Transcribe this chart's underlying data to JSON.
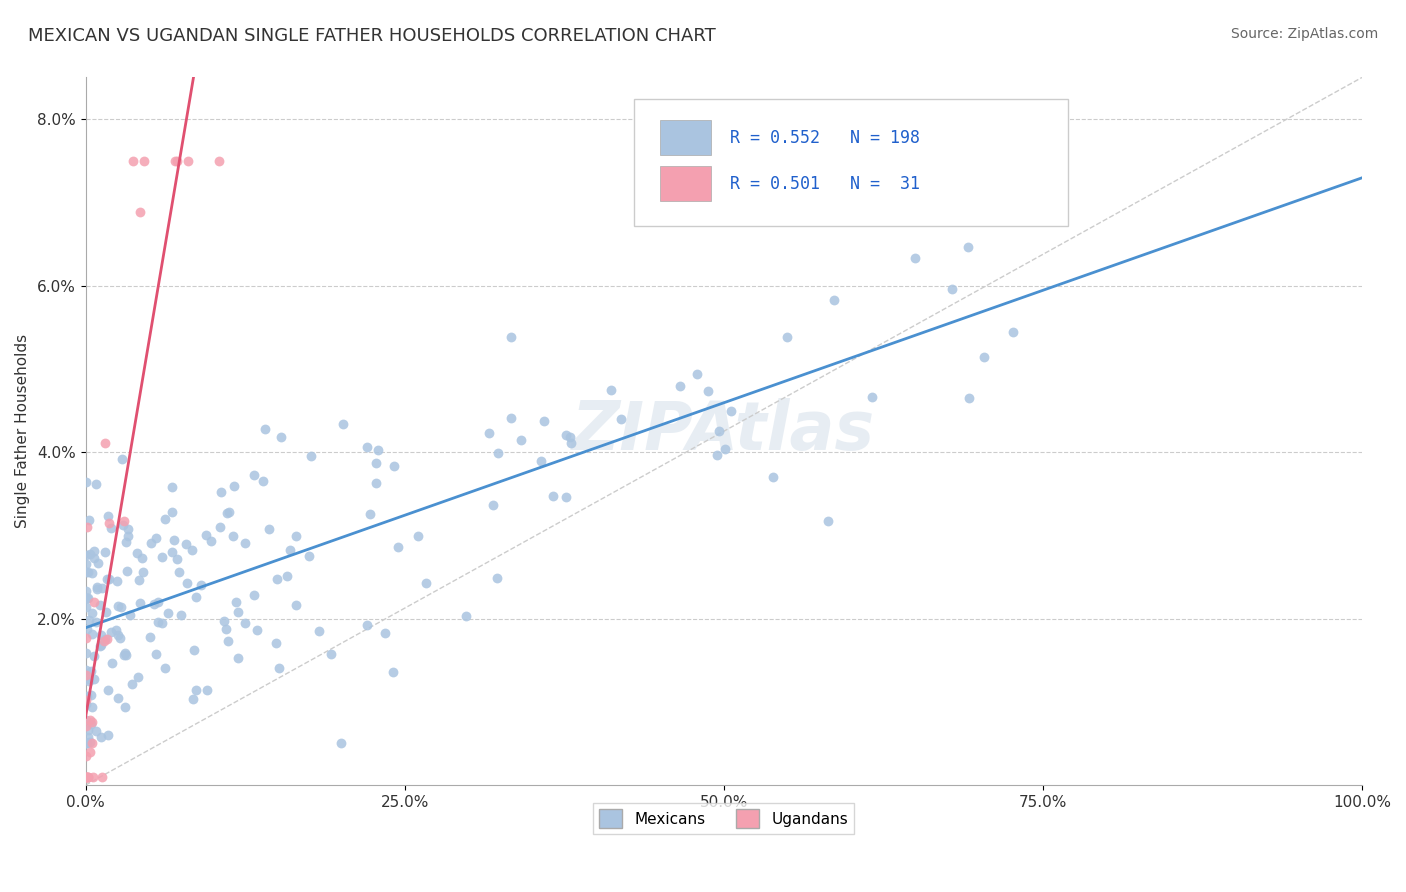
{
  "title": "MEXICAN VS UGANDAN SINGLE FATHER HOUSEHOLDS CORRELATION CHART",
  "source": "Source: ZipAtlas.com",
  "xlabel": "",
  "ylabel": "Single Father Households",
  "xlim": [
    0,
    1
  ],
  "ylim": [
    0,
    0.085
  ],
  "xticks": [
    0,
    0.25,
    0.5,
    0.75,
    1.0
  ],
  "xtick_labels": [
    "0.0%",
    "25.0%",
    "50.0%",
    "75.0%",
    "100.0%"
  ],
  "yticks": [
    0.02,
    0.04,
    0.06,
    0.08
  ],
  "ytick_labels": [
    "2.0%",
    "4.0%",
    "6.0%",
    "8.0%"
  ],
  "mexican_color": "#aac4e0",
  "ugandan_color": "#f4a0b0",
  "mexican_line_color": "#4a90d0",
  "ugandan_line_color": "#e05070",
  "mexican_R": 0.552,
  "mexican_N": 198,
  "ugandan_R": 0.501,
  "ugandan_N": 31,
  "legend_label_mexican": "Mexicans",
  "legend_label_ugandan": "Ugandans",
  "background_color": "#ffffff",
  "grid_color": "#cccccc",
  "watermark": "ZIPAtlas",
  "title_fontsize": 13,
  "axis_fontsize": 11,
  "tick_fontsize": 11,
  "source_fontsize": 10
}
